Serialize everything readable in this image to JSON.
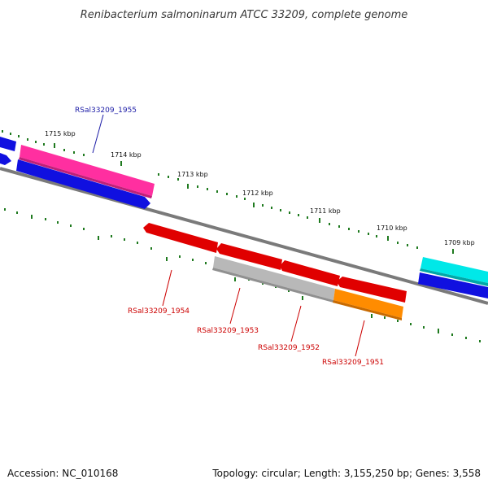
{
  "title": "Renibacterium salmoninarum ATCC 33209, complete genome",
  "footer": {
    "accession": "Accession: NC_010168",
    "topology": "Topology: circular; Length: 3,155,250 bp; Genes: 3,558"
  },
  "scale_labels": [
    "1715 kbp",
    "1714 kbp",
    "1713 kbp",
    "1712 kbp",
    "1711 kbp",
    "1710 kbp",
    "1709 kbp"
  ],
  "gene_labels": {
    "g1955": "RSal33209_1955",
    "g1954": "RSal33209_1954",
    "g1953": "RSal33209_1953",
    "g1952": "RSal33209_1952",
    "g1951": "RSal33209_1951"
  },
  "colors": {
    "backbone": "#7a7a7a",
    "tick": "#1f7a1f",
    "forward_strand": "#1010e0",
    "highlight_pink": "#ff2fa0",
    "reverse_red": "#e00000",
    "gray_gene": "#b8b8b8",
    "orange_gene": "#ff8c00",
    "cyan_gene": "#00e8e8"
  }
}
